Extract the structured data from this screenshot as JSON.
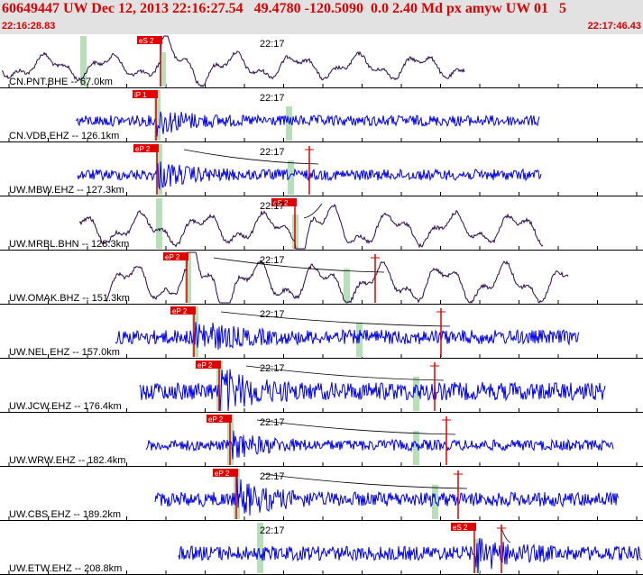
{
  "header": {
    "title": "60649447 UW Dec 12, 2013 22:16:27.54   49.4780 -120.5090  0.0 2.40 Md px amyw UW 01   5",
    "start_time": "22:16:28.83",
    "end_time": "22:17:46.43"
  },
  "colors": {
    "header_text": "#d80000",
    "header_bg": "#e2e2e2",
    "pick_red": "#e00000",
    "window_green": "#b8e0b8",
    "trace_blue": "#0000ee",
    "trace_dark": "#2a0a4a"
  },
  "time_marker": "22:17",
  "traces": [
    {
      "label": "CN.PNT.BHE -- 67.0km",
      "pick": "eS 2",
      "color": "dark"
    },
    {
      "label": "CN.VDB.EHZ -- 126.1km",
      "pick": "iP 1",
      "color": "blue"
    },
    {
      "label": "UW.MBW.EHZ -- 127.3km",
      "pick": "eP 2",
      "color": "blue"
    },
    {
      "label": "UW.MRBL.BHN -- 128.3km",
      "pick": "eS 2",
      "color": "dark"
    },
    {
      "label": "UW.OMAK.BHZ -- 151.3km",
      "pick": "eP 2",
      "color": "dark"
    },
    {
      "label": "UW.NEL.EHZ -- 157.0km",
      "pick": "eP 2",
      "color": "blue"
    },
    {
      "label": "UW.JCW.EHZ -- 176.4km",
      "pick": "eP 2",
      "color": "blue"
    },
    {
      "label": "UW.WRW.EHZ -- 182.4km",
      "pick": "eP 2",
      "color": "blue"
    },
    {
      "label": "UW.CBS.EHZ -- 189.2km",
      "pick": "eP 2",
      "color": "blue"
    },
    {
      "label": "UW.ETW.EHZ -- 208.8km",
      "pick": "eS 2",
      "color": "blue"
    }
  ]
}
